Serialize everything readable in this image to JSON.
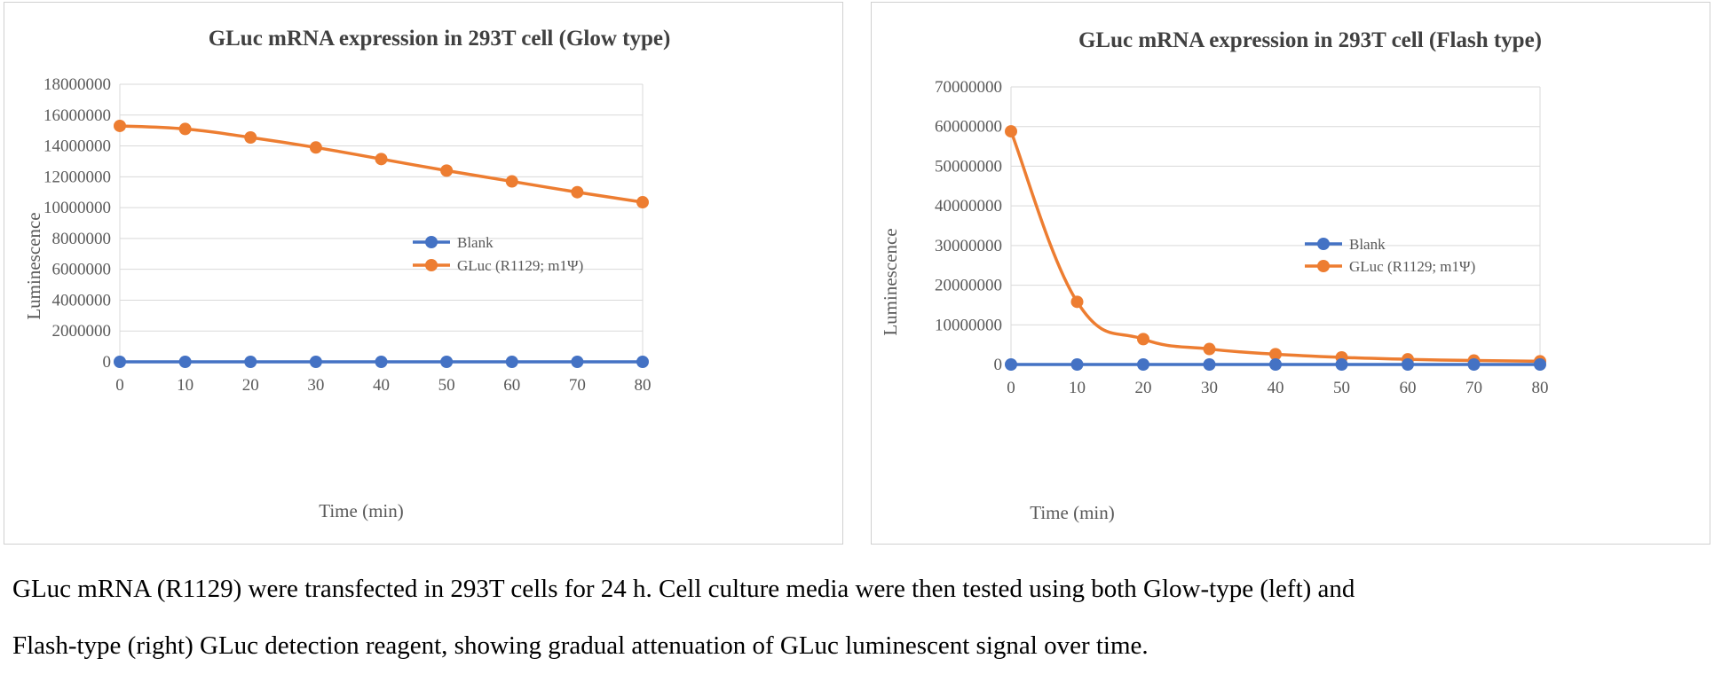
{
  "chart_data": [
    {
      "type": "line",
      "title": "GLuc mRNA expression in 293T cell (Glow type)",
      "xlabel": "Time (min)",
      "ylabel": "Luminescence",
      "x": [
        0,
        10,
        20,
        30,
        40,
        50,
        60,
        70,
        80
      ],
      "xticks": [
        "0",
        "10",
        "20",
        "30",
        "40",
        "50",
        "60",
        "70",
        "80"
      ],
      "ylim": [
        0,
        18000000
      ],
      "yticks": [
        "0",
        "2000000",
        "4000000",
        "6000000",
        "8000000",
        "10000000",
        "12000000",
        "14000000",
        "16000000",
        "18000000"
      ],
      "grid": true,
      "legend_position": "right",
      "series": [
        {
          "name": "Blank",
          "color": "#4472C4",
          "values": [
            0,
            0,
            0,
            0,
            0,
            0,
            0,
            0,
            0
          ]
        },
        {
          "name": "GLuc (R1129; m1Ψ)",
          "color": "#ED7D31",
          "values": [
            15300000,
            15100000,
            14550000,
            13900000,
            13150000,
            12400000,
            11700000,
            11000000,
            10350000
          ]
        }
      ]
    },
    {
      "type": "line",
      "title": "GLuc mRNA expression in 293T cell  (Flash type)",
      "xlabel": "Time (min)",
      "ylabel": "Luminescence",
      "x": [
        0,
        10,
        20,
        30,
        40,
        50,
        60,
        70,
        80
      ],
      "xticks": [
        "0",
        "10",
        "20",
        "30",
        "40",
        "50",
        "60",
        "70",
        "80"
      ],
      "ylim": [
        0,
        70000000
      ],
      "yticks": [
        "0",
        "10000000",
        "20000000",
        "30000000",
        "40000000",
        "50000000",
        "60000000",
        "70000000"
      ],
      "grid": true,
      "legend_position": "right",
      "series": [
        {
          "name": "Blank",
          "color": "#4472C4",
          "values": [
            0,
            0,
            0,
            0,
            0,
            0,
            0,
            0,
            0
          ]
        },
        {
          "name": "GLuc (R1129; m1Ψ)",
          "color": "#ED7D31",
          "values": [
            58800000,
            15800000,
            6400000,
            3900000,
            2600000,
            1800000,
            1300000,
            1000000,
            800000
          ]
        }
      ]
    }
  ],
  "caption": {
    "line1": "GLuc mRNA (R1129) were transfected in 293T cells for 24 h. Cell culture media were then tested using both Glow-type (left) and",
    "line2": "Flash-type (right) GLuc detection reagent, showing gradual attenuation of GLuc luminescent signal over time."
  }
}
